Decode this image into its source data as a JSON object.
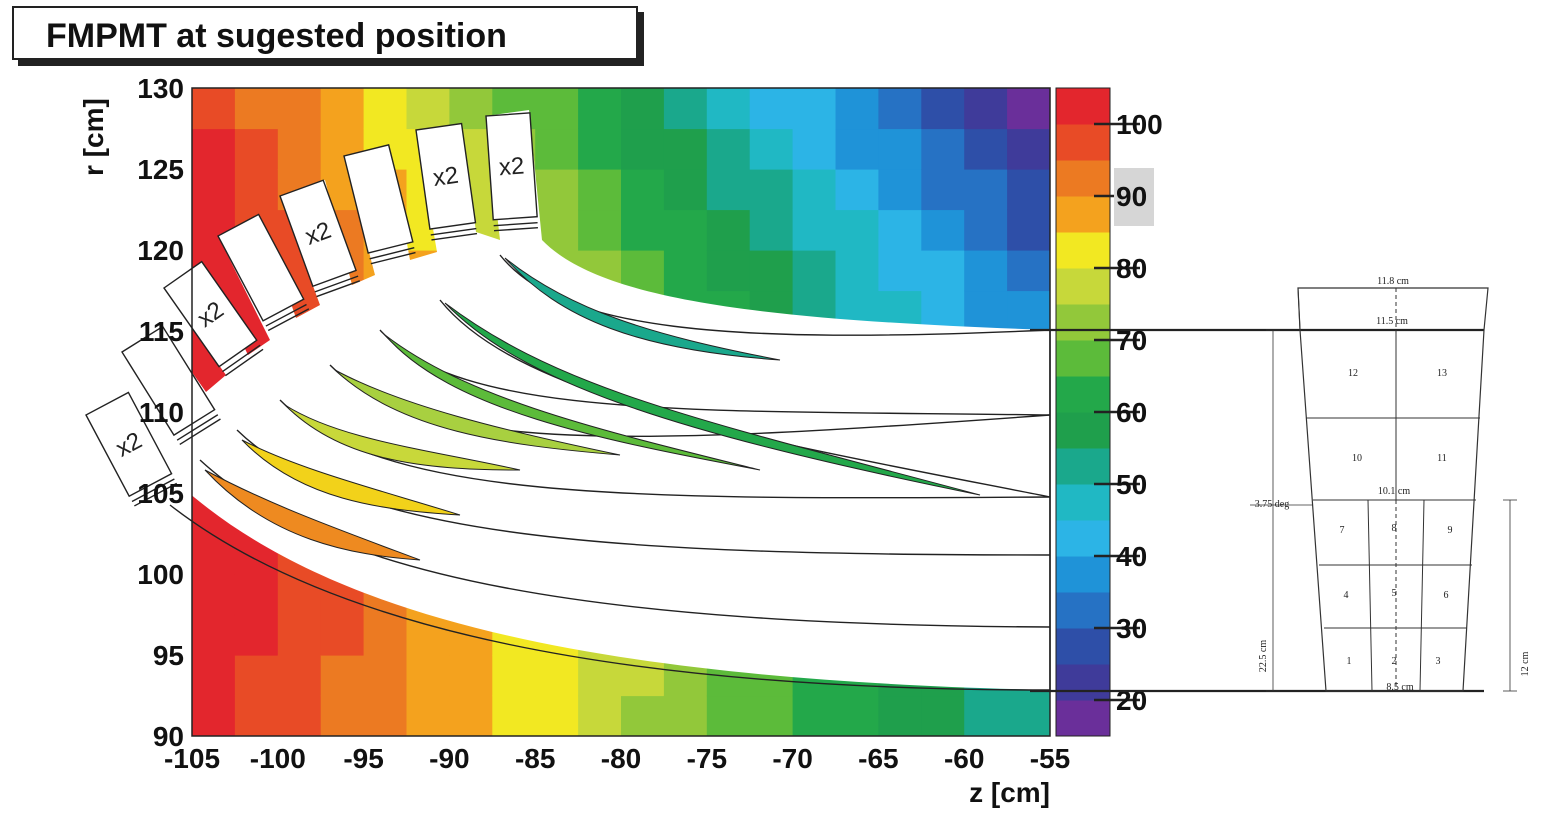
{
  "title": "FMPMT at sugested position",
  "chart_data": {
    "type": "heatmap",
    "title": "FMPMT at sugested position",
    "xlabel": "z [cm]",
    "ylabel": "r [cm]",
    "xlim": [
      -105,
      -55
    ],
    "ylim": [
      90,
      130
    ],
    "x_ticks": [
      "-105",
      "-100",
      "-95",
      "-90",
      "-85",
      "-80",
      "-75",
      "-70",
      "-65",
      "-60",
      "-55"
    ],
    "y_ticks": [
      "90",
      "95",
      "100",
      "105",
      "110",
      "115",
      "120",
      "125",
      "130"
    ],
    "colorbar": {
      "range": [
        15,
        105
      ],
      "ticks": [
        "20",
        "30",
        "40",
        "50",
        "60",
        "70",
        "80",
        "90",
        "100"
      ],
      "highlighted_tick": "90"
    },
    "notes": "Heat map of z [cm] vs r [cm]; values high (~100) at bottom-left, low (~20) at top-right.",
    "guide_labels": [
      "x2",
      "x2",
      "x2",
      "x2",
      "x2"
    ]
  },
  "diagram": {
    "top_width": "11.8 cm",
    "upper_width": "11.5 cm",
    "mid_width": "10.1 cm",
    "bottom_width": "8.5 cm",
    "angle": "3.75 deg",
    "height_total": "22.5 cm",
    "height_lower": "12 cm",
    "cells": [
      "1",
      "2",
      "3",
      "4",
      "5",
      "6",
      "7",
      "8",
      "9",
      "10",
      "11",
      "12",
      "13"
    ]
  }
}
